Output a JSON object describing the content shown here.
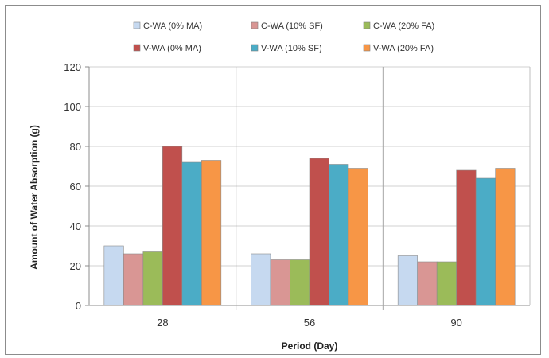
{
  "chart_data": {
    "type": "bar",
    "title": "",
    "xlabel": "Period (Day)",
    "ylabel": "Amount of Water Absorption (g)",
    "ylim": [
      0,
      120
    ],
    "yticks": [
      0,
      20,
      40,
      60,
      80,
      100,
      120
    ],
    "grid": true,
    "legend_position": "top",
    "categories": [
      "28",
      "56",
      "90"
    ],
    "series": [
      {
        "name": "C-WA (0% MA)",
        "color": "#c6d9f0",
        "values": [
          30,
          26,
          25
        ]
      },
      {
        "name": "C-WA (10% SF)",
        "color": "#d99694",
        "values": [
          26,
          23,
          22
        ]
      },
      {
        "name": "C-WA (20% FA)",
        "color": "#9bbb59",
        "values": [
          27,
          23,
          22
        ]
      },
      {
        "name": "V-WA (0% MA)",
        "color": "#c0504d",
        "values": [
          80,
          74,
          68
        ]
      },
      {
        "name": "V-WA (10% SF)",
        "color": "#4bacc6",
        "values": [
          72,
          71,
          64
        ]
      },
      {
        "name": "V-WA (20% FA)",
        "color": "#f79646",
        "values": [
          73,
          69,
          69
        ]
      }
    ]
  }
}
